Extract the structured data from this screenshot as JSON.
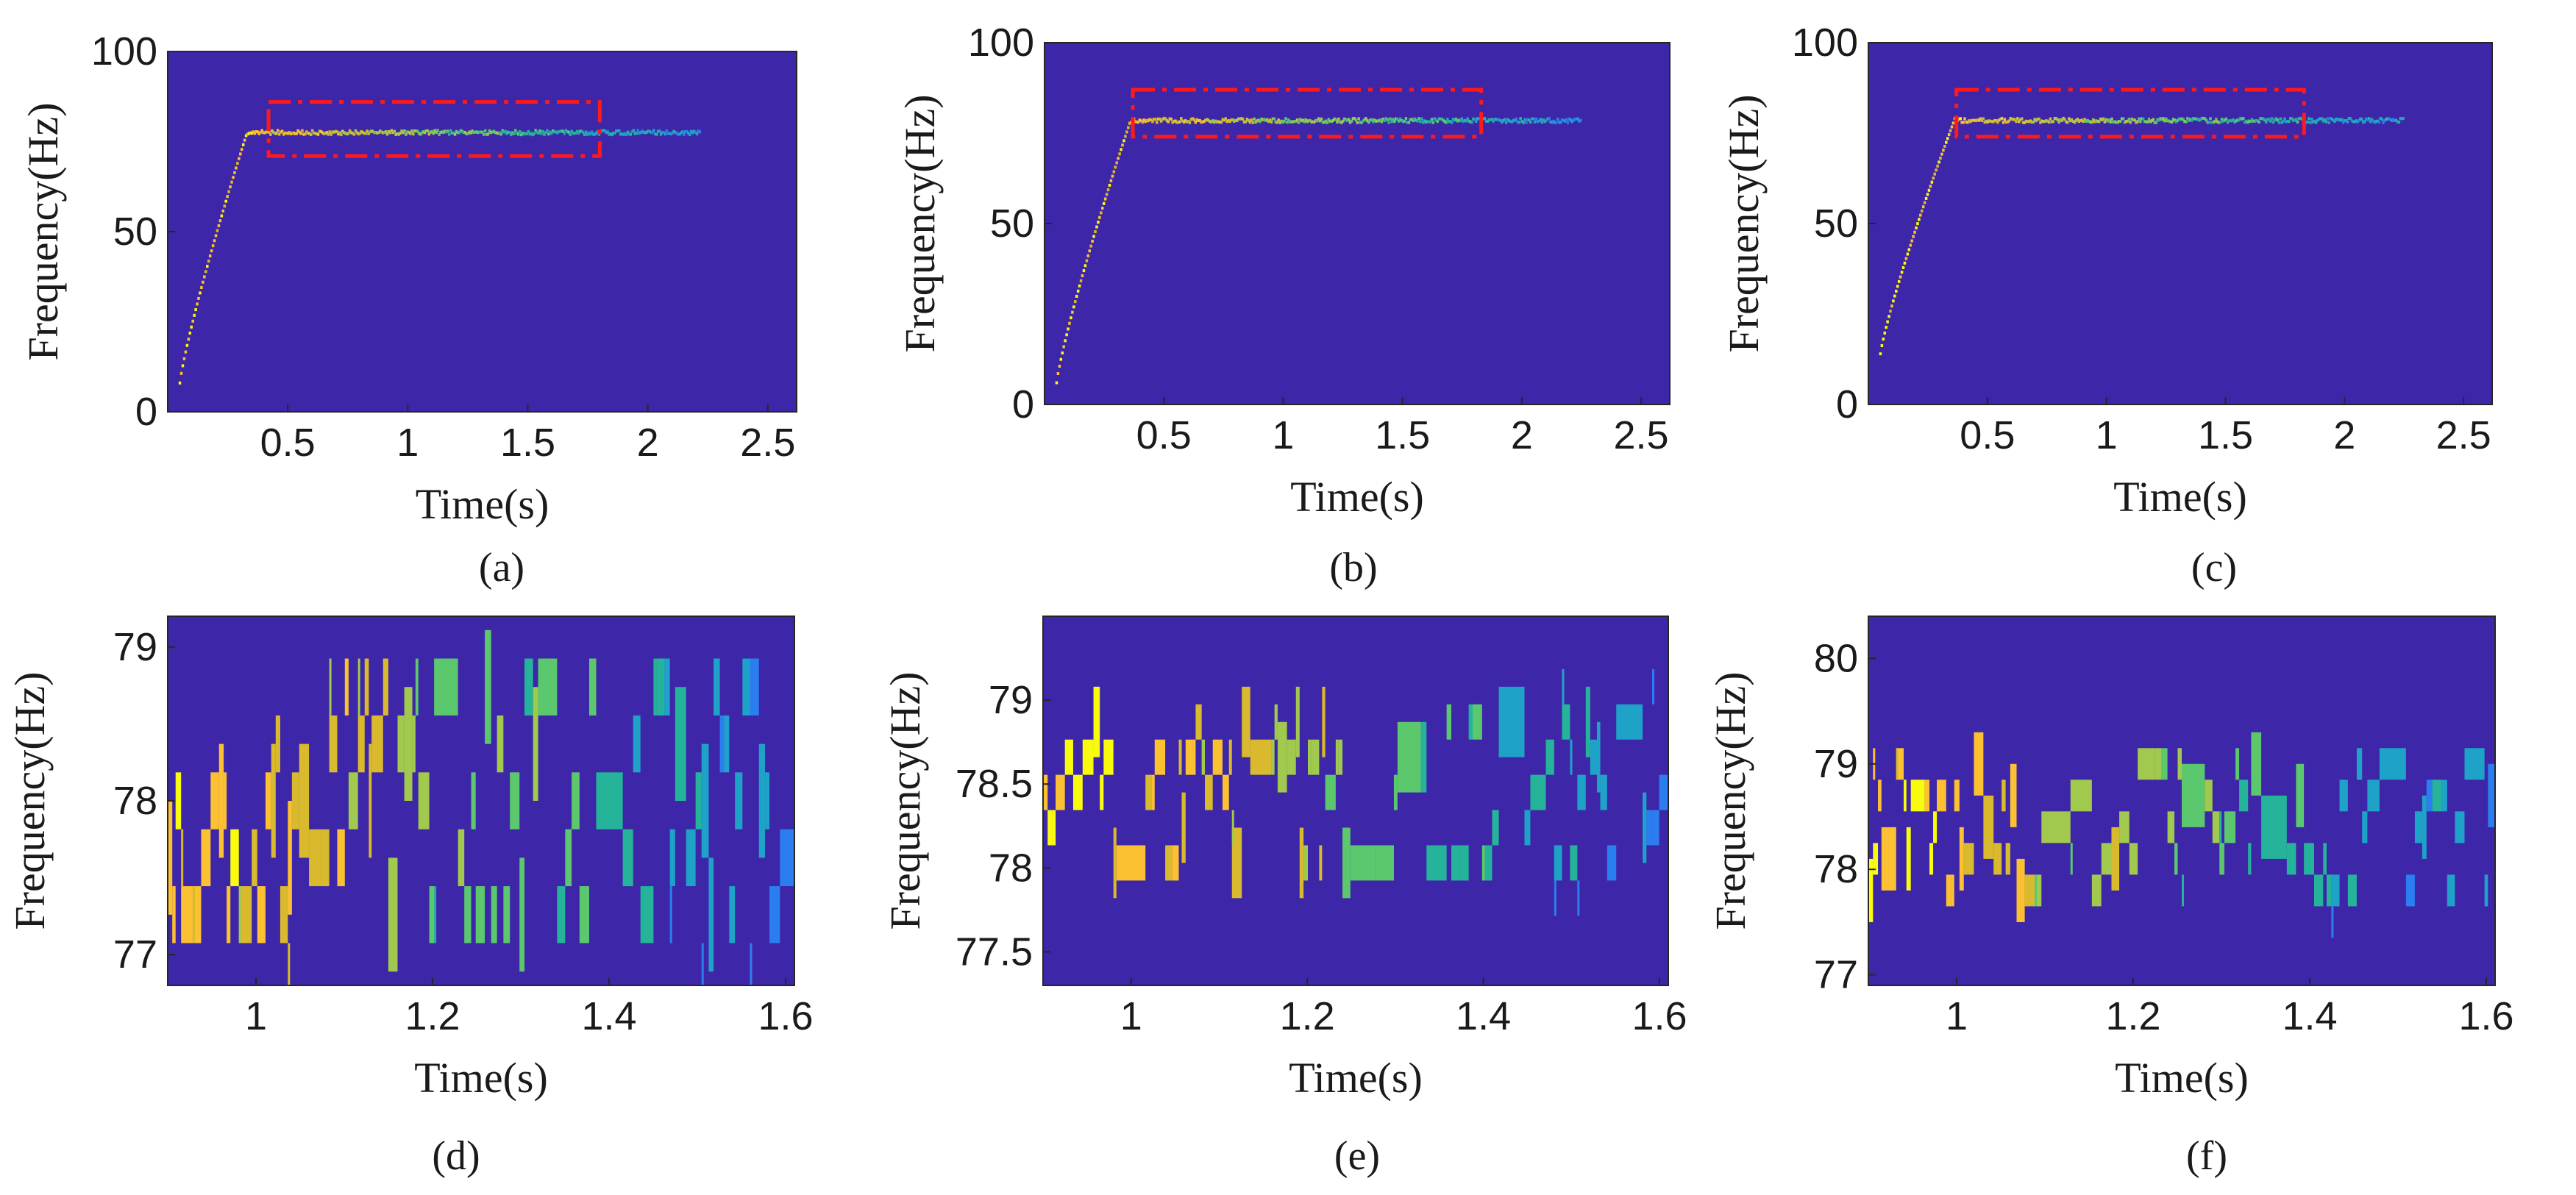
{
  "colors": {
    "background": "#3e26a8",
    "roi": "#ff1a1a",
    "colormap": [
      "#f9fb0e",
      "#fcc132",
      "#d9ba2e",
      "#a0c94d",
      "#5bc86e",
      "#25b49a",
      "#1fa2c8",
      "#2b7ef0"
    ]
  },
  "chart_data": [
    {
      "type": "heatmap",
      "panel": "a",
      "caption": "(a)",
      "xlabel": "Time(s)",
      "ylabel": "Frequency(Hz)",
      "xlim": [
        0.0,
        2.62
      ],
      "ylim": [
        0,
        100
      ],
      "xticks": [
        0.5,
        1,
        1.5,
        2,
        2.5
      ],
      "xtick_labels": [
        "0.5",
        "1",
        "1.5",
        "2",
        "2.5"
      ],
      "yticks": [
        0,
        50,
        100
      ],
      "ytick_labels": [
        "0",
        "50",
        "100"
      ],
      "ridge": {
        "t_start": 0.05,
        "f_start": 8,
        "t_knee": 0.33,
        "f_plateau": 77.5,
        "t_end": 2.22
      },
      "roi": {
        "t0": 0.42,
        "t1": 1.8,
        "f0": 71,
        "f1": 86
      }
    },
    {
      "type": "heatmap",
      "panel": "b",
      "caption": "(b)",
      "xlabel": "Time(s)",
      "ylabel": "Frequency(Hz)",
      "xlim": [
        0.0,
        2.62
      ],
      "ylim": [
        0,
        100
      ],
      "xticks": [
        0.5,
        1,
        1.5,
        2,
        2.5
      ],
      "xtick_labels": [
        "0.5",
        "1",
        "1.5",
        "2",
        "2.5"
      ],
      "yticks": [
        0,
        50,
        100
      ],
      "ytick_labels": [
        "0",
        "50",
        "100"
      ],
      "ridge": {
        "t_start": 0.05,
        "f_start": 6,
        "t_knee": 0.36,
        "f_plateau": 78.5,
        "t_end": 2.25
      },
      "roi": {
        "t0": 0.37,
        "t1": 1.83,
        "f0": 74,
        "f1": 87
      }
    },
    {
      "type": "heatmap",
      "panel": "c",
      "caption": "(c)",
      "xlabel": "Time(s)",
      "ylabel": "Frequency(Hz)",
      "xlim": [
        0.0,
        2.62
      ],
      "ylim": [
        0,
        100
      ],
      "xticks": [
        0.5,
        1,
        1.5,
        2,
        2.5
      ],
      "xtick_labels": [
        "0.5",
        "1",
        "1.5",
        "2",
        "2.5"
      ],
      "yticks": [
        0,
        50,
        100
      ],
      "ytick_labels": [
        "0",
        "50",
        "100"
      ],
      "ridge": {
        "t_start": 0.05,
        "f_start": 14,
        "t_knee": 0.36,
        "f_plateau": 78.5,
        "t_end": 2.25
      },
      "roi": {
        "t0": 0.37,
        "t1": 1.83,
        "f0": 74,
        "f1": 87
      }
    },
    {
      "type": "heatmap",
      "panel": "d",
      "caption": "(d)",
      "xlabel": "Time(s)",
      "ylabel": "Frequency(Hz)",
      "xlim": [
        0.9,
        1.61
      ],
      "ylim": [
        76.8,
        79.2
      ],
      "xticks": [
        1,
        1.2,
        1.4,
        1.6
      ],
      "xtick_labels": [
        "1",
        "1.2",
        "1.4",
        "1.6"
      ],
      "yticks": [
        77,
        78,
        79
      ],
      "ytick_labels": [
        "77",
        "78",
        "79"
      ],
      "bin_center": 78.0,
      "bin_step": 0.37,
      "seed": 11
    },
    {
      "type": "heatmap",
      "panel": "e",
      "caption": "(e)",
      "xlabel": "Time(s)",
      "ylabel": "Frequency(Hz)",
      "xlim": [
        0.9,
        1.61
      ],
      "ylim": [
        77.3,
        79.5
      ],
      "xticks": [
        1,
        1.2,
        1.4,
        1.6
      ],
      "xtick_labels": [
        "1",
        "1.2",
        "1.4",
        "1.6"
      ],
      "yticks": [
        77.5,
        78,
        78.5,
        79
      ],
      "ytick_labels": [
        "77.5",
        "78",
        "78.5",
        "79"
      ],
      "bin_center": 78.45,
      "bin_step": 0.21,
      "seed": 23
    },
    {
      "type": "heatmap",
      "panel": "f",
      "caption": "(f)",
      "xlabel": "Time(s)",
      "ylabel": "Frequency(Hz)",
      "xlim": [
        0.9,
        1.61
      ],
      "ylim": [
        76.9,
        80.4
      ],
      "xticks": [
        1,
        1.2,
        1.4,
        1.6
      ],
      "xtick_labels": [
        "1",
        "1.2",
        "1.4",
        "1.6"
      ],
      "yticks": [
        77,
        78,
        79,
        80
      ],
      "ytick_labels": [
        "77",
        "78",
        "79",
        "80"
      ],
      "bin_center": 78.4,
      "bin_step": 0.3,
      "seed": 37
    }
  ]
}
